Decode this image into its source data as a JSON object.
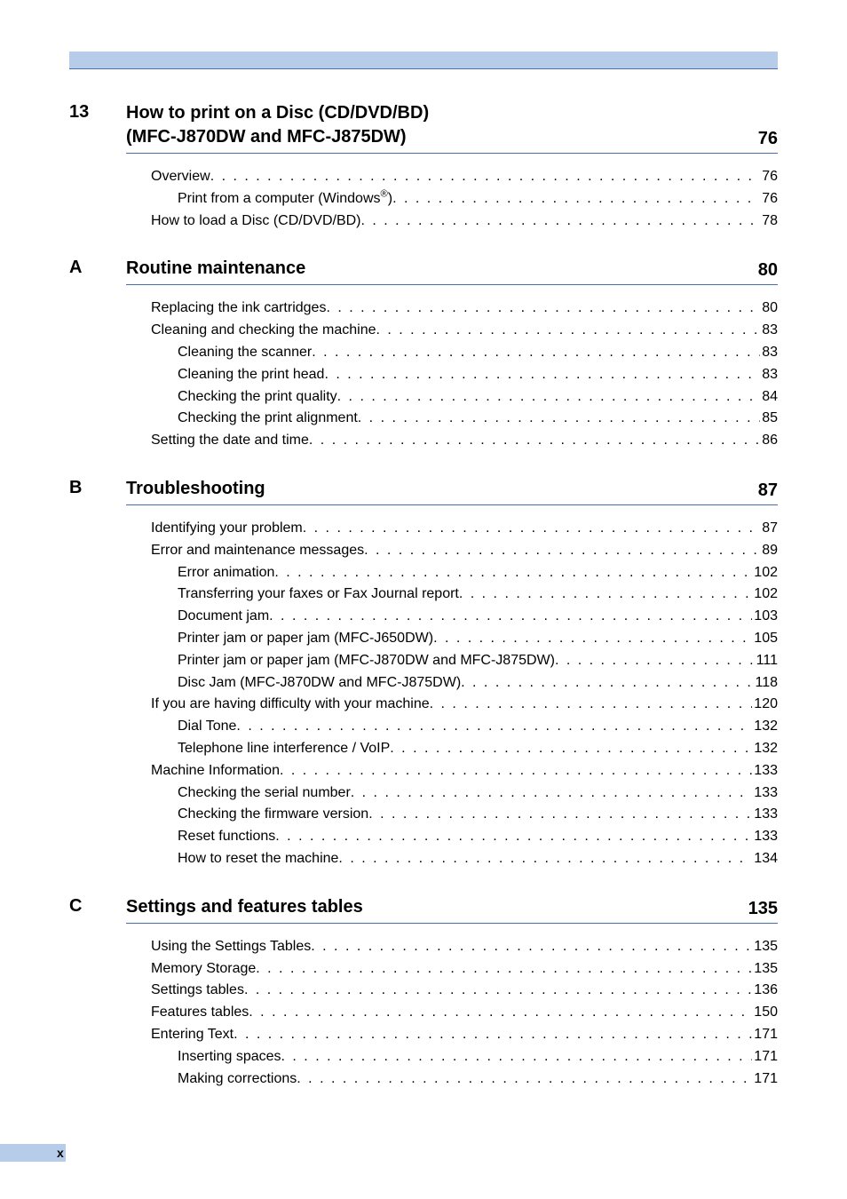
{
  "colors": {
    "header_bg": "#b6cce9",
    "rule": "#4a6ea8",
    "text": "#000000",
    "page_bg": "#ffffff"
  },
  "typography": {
    "section_title_fontsize": 20,
    "toc_fontsize": 16,
    "footer_fontsize": 14,
    "font_family": "Arial"
  },
  "sections": [
    {
      "label": "13",
      "title_lines": [
        "How to print on a Disc (CD/DVD/BD)",
        "(MFC-J870DW and MFC-J875DW)"
      ],
      "page": "76",
      "entries": [
        {
          "level": 1,
          "text": "Overview",
          "page": "76"
        },
        {
          "level": 2,
          "text_html": "Print from a computer (Windows<span class=\"sup\">®</span>)",
          "page": "76"
        },
        {
          "level": 1,
          "text": "How to load a Disc (CD/DVD/BD)",
          "page": "78"
        }
      ]
    },
    {
      "label": "A",
      "title_lines": [
        "Routine maintenance"
      ],
      "page": "80",
      "entries": [
        {
          "level": 1,
          "text": "Replacing the ink cartridges",
          "page": "80"
        },
        {
          "level": 1,
          "text": "Cleaning and checking the machine",
          "page": "83"
        },
        {
          "level": 2,
          "text": "Cleaning the scanner",
          "page": "83"
        },
        {
          "level": 2,
          "text": "Cleaning the print head",
          "page": "83"
        },
        {
          "level": 2,
          "text": "Checking the print quality",
          "page": "84"
        },
        {
          "level": 2,
          "text": "Checking the print alignment",
          "page": "85"
        },
        {
          "level": 1,
          "text": "Setting the date and time",
          "page": "86"
        }
      ]
    },
    {
      "label": "B",
      "title_lines": [
        "Troubleshooting"
      ],
      "page": "87",
      "entries": [
        {
          "level": 1,
          "text": "Identifying your problem",
          "page": "87"
        },
        {
          "level": 1,
          "text": "Error and maintenance messages",
          "page": "89"
        },
        {
          "level": 2,
          "text": "Error animation",
          "page": "102"
        },
        {
          "level": 2,
          "text": "Transferring your faxes or Fax Journal report",
          "page": "102"
        },
        {
          "level": 2,
          "text": "Document jam ",
          "page": "103"
        },
        {
          "level": 2,
          "text": "Printer jam or paper jam (MFC-J650DW)",
          "page": "105"
        },
        {
          "level": 2,
          "text": "Printer jam or paper jam (MFC-J870DW and MFC-J875DW)",
          "page": "111"
        },
        {
          "level": 2,
          "text": "Disc Jam (MFC-J870DW and MFC-J875DW)",
          "page": "118"
        },
        {
          "level": 1,
          "text": "If you are having difficulty with your machine",
          "page": "120"
        },
        {
          "level": 2,
          "text": "Dial Tone ",
          "page": "132"
        },
        {
          "level": 2,
          "text": "Telephone line interference / VoIP",
          "page": "132"
        },
        {
          "level": 1,
          "text": "Machine Information",
          "page": "133"
        },
        {
          "level": 2,
          "text": "Checking the serial number",
          "page": "133"
        },
        {
          "level": 2,
          "text": "Checking the firmware version",
          "page": "133"
        },
        {
          "level": 2,
          "text": "Reset functions",
          "page": "133"
        },
        {
          "level": 2,
          "text": "How to reset the machine",
          "page": "134"
        }
      ]
    },
    {
      "label": "C",
      "title_lines": [
        "Settings and features tables"
      ],
      "page": "135",
      "entries": [
        {
          "level": 1,
          "text": "Using the Settings Tables",
          "page": "135"
        },
        {
          "level": 1,
          "text": "Memory Storage",
          "page": "135"
        },
        {
          "level": 1,
          "text": "Settings tables",
          "page": "136"
        },
        {
          "level": 1,
          "text": "Features tables",
          "page": "150"
        },
        {
          "level": 1,
          "text": "Entering Text",
          "page": "171"
        },
        {
          "level": 2,
          "text": "Inserting spaces ",
          "page": "171"
        },
        {
          "level": 2,
          "text": "Making corrections",
          "page": "171"
        }
      ]
    }
  ],
  "footer": {
    "page_number": "x"
  }
}
